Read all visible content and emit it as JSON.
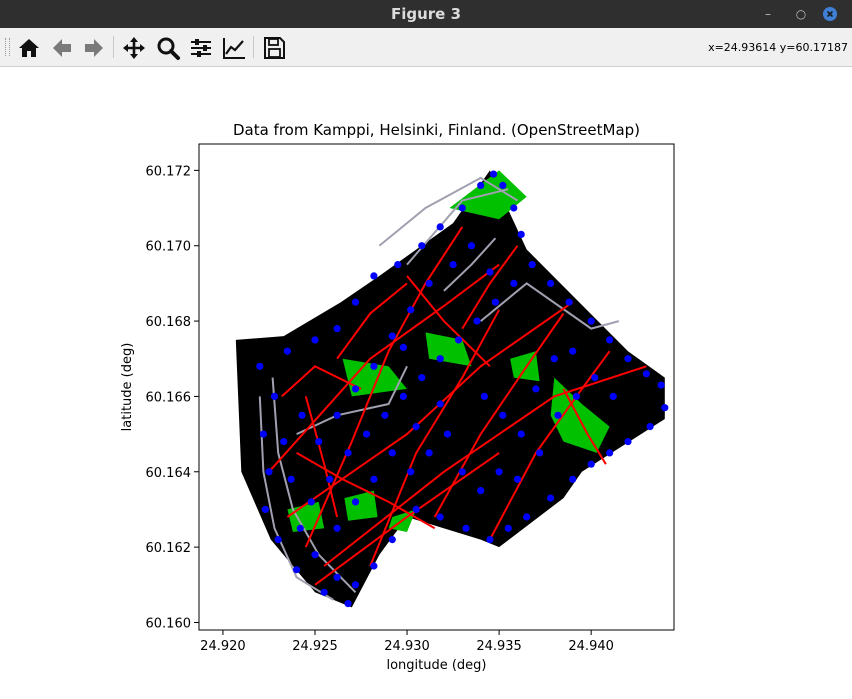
{
  "window": {
    "title": "Figure 3"
  },
  "toolbar": {
    "buttons": [
      "home-icon",
      "back-icon",
      "forward-icon",
      "pan-icon",
      "zoom-icon",
      "configure-icon",
      "edit-axis-icon",
      "save-icon"
    ],
    "coord_readout": "x=24.93614 y=60.17187"
  },
  "chart_data": {
    "type": "scatter",
    "title": "Data from Kamppi, Helsinki, Finland.  (OpenStreetMap)",
    "xlabel": "longitude (deg)",
    "ylabel": "latitude (deg)",
    "xlim": [
      24.9187,
      24.9445
    ],
    "ylim": [
      60.1598,
      60.1727
    ],
    "xticks": [
      24.92,
      24.925,
      24.93,
      24.935,
      24.94
    ],
    "xtick_labels": [
      "24.920",
      "24.925",
      "24.930",
      "24.935",
      "24.940"
    ],
    "yticks": [
      60.16,
      60.162,
      60.164,
      60.166,
      60.168,
      60.17,
      60.172
    ],
    "ytick_labels": [
      "60.160",
      "60.162",
      "60.164",
      "60.166",
      "60.168",
      "60.170",
      "60.172"
    ],
    "colors": {
      "land": "#000000",
      "park": "#00c000",
      "road": "#ff0000",
      "path": "#a0a0b0",
      "node": "#0000ff"
    },
    "land_polygon": [
      [
        24.9207,
        60.1675
      ],
      [
        24.9233,
        60.1676
      ],
      [
        24.9264,
        60.1685
      ],
      [
        24.9285,
        60.1692
      ],
      [
        24.9325,
        60.1706
      ],
      [
        24.9345,
        60.172
      ],
      [
        24.9365,
        60.1699
      ],
      [
        24.942,
        60.1672
      ],
      [
        24.944,
        60.1665
      ],
      [
        24.944,
        60.1654
      ],
      [
        24.9395,
        60.164
      ],
      [
        24.9385,
        60.1633
      ],
      [
        24.935,
        60.162
      ],
      [
        24.934,
        60.1622
      ],
      [
        24.93,
        60.1628
      ],
      [
        24.9285,
        60.1618
      ],
      [
        24.927,
        60.1604
      ],
      [
        24.925,
        60.1608
      ],
      [
        24.9226,
        60.1622
      ],
      [
        24.921,
        60.164
      ]
    ],
    "parks": [
      [
        [
          24.9323,
          60.171
        ],
        [
          24.935,
          60.172
        ],
        [
          24.9365,
          60.1713
        ],
        [
          24.935,
          60.1707
        ]
      ],
      [
        [
          24.9265,
          60.167
        ],
        [
          24.929,
          60.1668
        ],
        [
          24.93,
          60.1662
        ],
        [
          24.927,
          60.166
        ]
      ],
      [
        [
          24.931,
          60.1677
        ],
        [
          24.933,
          60.1675
        ],
        [
          24.9335,
          60.1668
        ],
        [
          24.9312,
          60.167
        ]
      ],
      [
        [
          24.9356,
          60.167
        ],
        [
          24.937,
          60.1672
        ],
        [
          24.9372,
          60.1664
        ],
        [
          24.9358,
          60.1665
        ]
      ],
      [
        [
          24.938,
          60.1665
        ],
        [
          24.9395,
          60.1658
        ],
        [
          24.941,
          60.1652
        ],
        [
          24.9403,
          60.1645
        ],
        [
          24.9385,
          60.1648
        ],
        [
          24.9378,
          60.1655
        ]
      ],
      [
        [
          24.9235,
          60.163
        ],
        [
          24.9252,
          60.1632
        ],
        [
          24.9255,
          60.1625
        ],
        [
          24.9238,
          60.1624
        ]
      ],
      [
        [
          24.9266,
          60.1633
        ],
        [
          24.9282,
          60.1635
        ],
        [
          24.9284,
          60.1628
        ],
        [
          24.9268,
          60.1627
        ]
      ],
      [
        [
          24.9292,
          60.1628
        ],
        [
          24.9305,
          60.163
        ],
        [
          24.93,
          60.1624
        ],
        [
          24.929,
          60.1625
        ]
      ]
    ],
    "roads": [
      [
        [
          24.9225,
          60.164
        ],
        [
          24.928,
          60.167
        ],
        [
          24.932,
          60.1684
        ],
        [
          24.935,
          60.1695
        ]
      ],
      [
        [
          24.9235,
          60.1628
        ],
        [
          24.93,
          60.165
        ],
        [
          24.934,
          60.1668
        ],
        [
          24.939,
          60.1685
        ]
      ],
      [
        [
          24.9255,
          60.1615
        ],
        [
          24.932,
          60.164
        ],
        [
          24.938,
          60.166
        ],
        [
          24.943,
          60.1668
        ]
      ],
      [
        [
          24.925,
          60.161
        ],
        [
          24.93,
          60.1628
        ],
        [
          24.935,
          60.1645
        ]
      ],
      [
        [
          24.9232,
          60.166
        ],
        [
          24.925,
          60.1668
        ],
        [
          24.9275,
          60.1662
        ]
      ],
      [
        [
          24.9245,
          60.162
        ],
        [
          24.927,
          60.1648
        ],
        [
          24.929,
          60.1672
        ],
        [
          24.931,
          60.169
        ],
        [
          24.933,
          60.1705
        ]
      ],
      [
        [
          24.928,
          60.1615
        ],
        [
          24.9305,
          60.1645
        ],
        [
          24.933,
          60.1665
        ],
        [
          24.935,
          60.1683
        ]
      ],
      [
        [
          24.9315,
          60.1628
        ],
        [
          24.934,
          60.165
        ],
        [
          24.9365,
          60.1668
        ],
        [
          24.9385,
          60.1682
        ]
      ],
      [
        [
          24.9345,
          60.1622
        ],
        [
          24.937,
          60.1645
        ],
        [
          24.9395,
          60.1662
        ],
        [
          24.941,
          60.1672
        ]
      ],
      [
        [
          24.93,
          60.1692
        ],
        [
          24.932,
          60.168
        ],
        [
          24.9345,
          60.1668
        ]
      ],
      [
        [
          24.9262,
          60.167
        ],
        [
          24.928,
          60.1682
        ],
        [
          24.93,
          60.169
        ]
      ],
      [
        [
          24.924,
          60.1645
        ],
        [
          24.9265,
          60.1638
        ],
        [
          24.929,
          60.1632
        ],
        [
          24.9315,
          60.1625
        ]
      ],
      [
        [
          24.936,
          60.17
        ],
        [
          24.9345,
          60.169
        ],
        [
          24.933,
          60.1678
        ]
      ],
      [
        [
          24.9245,
          60.166
        ],
        [
          24.9255,
          60.1642
        ],
        [
          24.9262,
          60.1628
        ]
      ],
      [
        [
          24.9385,
          60.1662
        ],
        [
          24.9398,
          60.165
        ],
        [
          24.9408,
          60.1642
        ]
      ]
    ],
    "paths": [
      [
        [
          24.922,
          60.166
        ],
        [
          24.9222,
          60.164
        ],
        [
          24.9228,
          60.1625
        ],
        [
          24.924,
          60.1612
        ],
        [
          24.926,
          60.1606
        ]
      ],
      [
        [
          24.9227,
          60.1665
        ],
        [
          24.923,
          60.1645
        ],
        [
          24.9238,
          60.163
        ],
        [
          24.9252,
          60.1618
        ],
        [
          24.9272,
          60.1608
        ]
      ],
      [
        [
          24.9285,
          60.17
        ],
        [
          24.931,
          60.171
        ],
        [
          24.934,
          60.1718
        ],
        [
          24.936,
          60.1712
        ]
      ],
      [
        [
          24.93,
          60.1695
        ],
        [
          24.933,
          60.1712
        ],
        [
          24.9355,
          60.1715
        ]
      ],
      [
        [
          24.934,
          60.168
        ],
        [
          24.9365,
          60.169
        ],
        [
          24.94,
          60.1678
        ],
        [
          24.9415,
          60.168
        ]
      ],
      [
        [
          24.924,
          60.165
        ],
        [
          24.9262,
          60.1655
        ],
        [
          24.929,
          60.1658
        ],
        [
          24.93,
          60.1668
        ]
      ],
      [
        [
          24.932,
          60.1688
        ],
        [
          24.9335,
          60.1695
        ],
        [
          24.9348,
          60.1702
        ]
      ]
    ],
    "nodes": [
      [
        24.922,
        60.1668
      ],
      [
        24.9228,
        60.166
      ],
      [
        24.9222,
        60.165
      ],
      [
        24.9225,
        60.164
      ],
      [
        24.9223,
        60.163
      ],
      [
        24.923,
        60.1622
      ],
      [
        24.924,
        60.1614
      ],
      [
        24.9255,
        60.1608
      ],
      [
        24.9268,
        60.1605
      ],
      [
        24.9235,
        60.1672
      ],
      [
        24.925,
        60.1675
      ],
      [
        24.9262,
        60.1678
      ],
      [
        24.9272,
        60.1685
      ],
      [
        24.9282,
        60.1692
      ],
      [
        24.9295,
        60.1695
      ],
      [
        24.9308,
        60.17
      ],
      [
        24.9318,
        60.1705
      ],
      [
        24.933,
        60.171
      ],
      [
        24.934,
        60.1716
      ],
      [
        24.9347,
        60.1719
      ],
      [
        24.9352,
        60.1716
      ],
      [
        24.9358,
        60.171
      ],
      [
        24.9362,
        60.1703
      ],
      [
        24.9368,
        60.1695
      ],
      [
        24.9378,
        60.169
      ],
      [
        24.9388,
        60.1685
      ],
      [
        24.94,
        60.168
      ],
      [
        24.941,
        60.1675
      ],
      [
        24.942,
        60.167
      ],
      [
        24.943,
        60.1666
      ],
      [
        24.9438,
        60.1663
      ],
      [
        24.944,
        60.1657
      ],
      [
        24.9432,
        60.1652
      ],
      [
        24.942,
        60.1648
      ],
      [
        24.941,
        60.1645
      ],
      [
        24.94,
        60.1642
      ],
      [
        24.939,
        60.1638
      ],
      [
        24.9378,
        60.1633
      ],
      [
        24.9365,
        60.1628
      ],
      [
        24.9355,
        60.1625
      ],
      [
        24.9345,
        60.1622
      ],
      [
        24.9332,
        60.1625
      ],
      [
        24.9318,
        60.1628
      ],
      [
        24.9305,
        60.163
      ],
      [
        24.9292,
        60.1622
      ],
      [
        24.9282,
        60.1615
      ],
      [
        24.9272,
        60.161
      ],
      [
        24.9262,
        60.1612
      ],
      [
        24.925,
        60.1618
      ],
      [
        24.9242,
        60.1625
      ],
      [
        24.9248,
        60.1632
      ],
      [
        24.9258,
        60.1638
      ],
      [
        24.9268,
        60.1645
      ],
      [
        24.9278,
        60.165
      ],
      [
        24.9288,
        60.1655
      ],
      [
        24.9298,
        60.166
      ],
      [
        24.9308,
        60.1665
      ],
      [
        24.9318,
        60.167
      ],
      [
        24.9328,
        60.1675
      ],
      [
        24.9338,
        60.168
      ],
      [
        24.9348,
        60.1685
      ],
      [
        24.9358,
        60.169
      ],
      [
        24.9312,
        60.169
      ],
      [
        24.9302,
        60.1683
      ],
      [
        24.9292,
        60.1676
      ],
      [
        24.9282,
        60.1668
      ],
      [
        24.9272,
        60.1662
      ],
      [
        24.9262,
        60.1655
      ],
      [
        24.9252,
        60.1648
      ],
      [
        24.9342,
        60.166
      ],
      [
        24.9352,
        60.1655
      ],
      [
        24.9362,
        60.165
      ],
      [
        24.9372,
        60.1645
      ],
      [
        24.9382,
        60.1655
      ],
      [
        24.9392,
        60.166
      ],
      [
        24.9402,
        60.1665
      ],
      [
        24.9412,
        60.166
      ],
      [
        24.9322,
        60.165
      ],
      [
        24.9312,
        60.1645
      ],
      [
        24.9302,
        60.164
      ],
      [
        24.9292,
        60.1645
      ],
      [
        24.9282,
        60.1638
      ],
      [
        24.9272,
        60.1632
      ],
      [
        24.9262,
        60.1625
      ],
      [
        24.933,
        60.164
      ],
      [
        24.934,
        60.1635
      ],
      [
        24.935,
        60.164
      ],
      [
        24.936,
        60.1638
      ],
      [
        24.937,
        60.1662
      ],
      [
        24.938,
        60.167
      ],
      [
        24.939,
        60.1672
      ],
      [
        24.9325,
        60.1695
      ],
      [
        24.9335,
        60.17
      ],
      [
        24.9345,
        60.1693
      ],
      [
        24.9298,
        60.1673
      ],
      [
        24.9318,
        60.1658
      ],
      [
        24.9305,
        60.1652
      ],
      [
        24.9243,
        60.1655
      ],
      [
        24.9233,
        60.1648
      ],
      [
        24.9237,
        60.1638
      ]
    ]
  }
}
